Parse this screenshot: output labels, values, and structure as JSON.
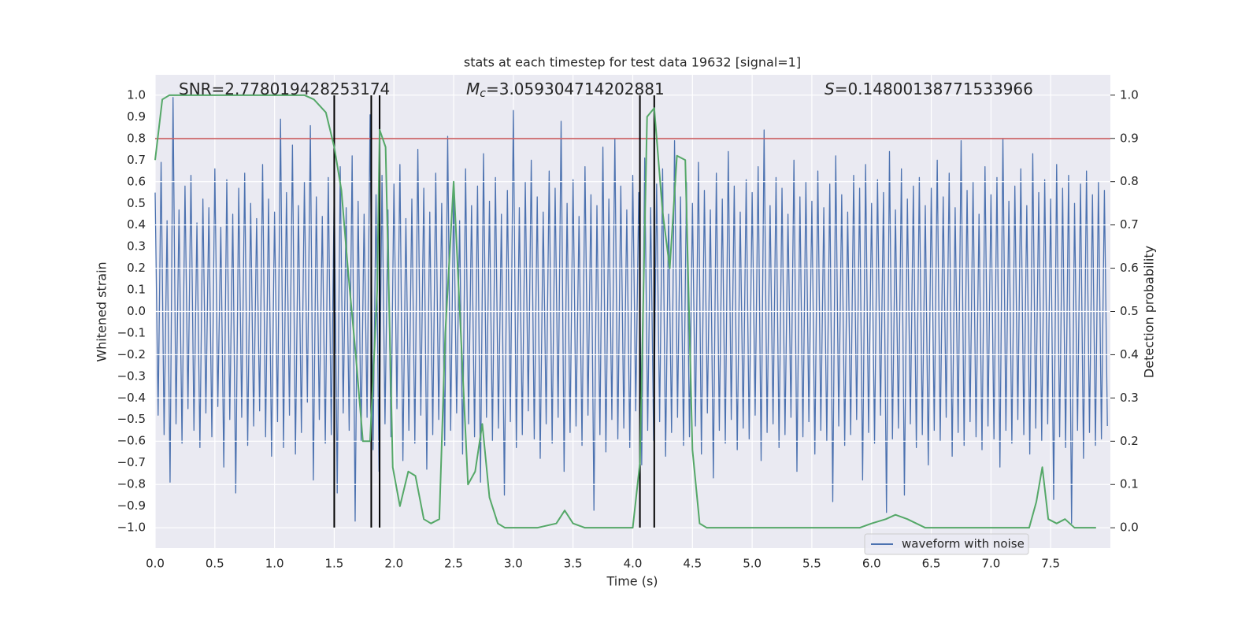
{
  "chart_data": {
    "type": "line",
    "title": "stats at each timestep for test data 19632 [signal=1]",
    "xlabel": "Time (s)",
    "ylabel": "Whitened strain",
    "y2label": "Detection probability",
    "annotations": [
      {
        "parts": [
          "SNR=2.778019428253174"
        ]
      },
      {
        "symbol": "M",
        "subscript": "c",
        "parts": [
          "=3.059304714202881"
        ]
      },
      {
        "symbol": "S",
        "parts": [
          "=0.14800138771533966"
        ]
      }
    ],
    "xlim": [
      0,
      8
    ],
    "ylim": [
      -1.095,
      1.095
    ],
    "y2lim": [
      -0.047,
      1.047
    ],
    "xticks": [
      {
        "value": 0,
        "label": "0.0"
      },
      {
        "value": 0.5,
        "label": "0.5"
      },
      {
        "value": 1,
        "label": "1.0"
      },
      {
        "value": 1.5,
        "label": "1.5"
      },
      {
        "value": 2,
        "label": "2.0"
      },
      {
        "value": 2.5,
        "label": "2.5"
      },
      {
        "value": 3,
        "label": "3.0"
      },
      {
        "value": 3.5,
        "label": "3.5"
      },
      {
        "value": 4,
        "label": "4.0"
      },
      {
        "value": 4.5,
        "label": "4.5"
      },
      {
        "value": 5,
        "label": "5.0"
      },
      {
        "value": 5.5,
        "label": "5.5"
      },
      {
        "value": 6,
        "label": "6.0"
      },
      {
        "value": 6.5,
        "label": "6.5"
      },
      {
        "value": 7,
        "label": "7.0"
      },
      {
        "value": 7.5,
        "label": "7.5"
      }
    ],
    "yticks": [
      {
        "value": -1,
        "label": "−1.0"
      },
      {
        "value": -0.9,
        "label": "−0.9"
      },
      {
        "value": -0.8,
        "label": "−0.8"
      },
      {
        "value": -0.7,
        "label": "−0.7"
      },
      {
        "value": -0.6,
        "label": "−0.6"
      },
      {
        "value": -0.5,
        "label": "−0.5"
      },
      {
        "value": -0.4,
        "label": "−0.4"
      },
      {
        "value": -0.3,
        "label": "−0.3"
      },
      {
        "value": -0.2,
        "label": "−0.2"
      },
      {
        "value": -0.1,
        "label": "−0.1"
      },
      {
        "value": 0,
        "label": "0.0"
      },
      {
        "value": 0.1,
        "label": "0.1"
      },
      {
        "value": 0.2,
        "label": "0.2"
      },
      {
        "value": 0.3,
        "label": "0.3"
      },
      {
        "value": 0.4,
        "label": "0.4"
      },
      {
        "value": 0.5,
        "label": "0.5"
      },
      {
        "value": 0.6,
        "label": "0.6"
      },
      {
        "value": 0.7,
        "label": "0.7"
      },
      {
        "value": 0.8,
        "label": "0.8"
      },
      {
        "value": 0.9,
        "label": "0.9"
      },
      {
        "value": 1,
        "label": "1.0"
      }
    ],
    "y2ticks": [
      {
        "value": 0,
        "label": "0.0"
      },
      {
        "value": 0.1,
        "label": "0.1"
      },
      {
        "value": 0.2,
        "label": "0.2"
      },
      {
        "value": 0.3,
        "label": "0.3"
      },
      {
        "value": 0.4,
        "label": "0.4"
      },
      {
        "value": 0.5,
        "label": "0.5"
      },
      {
        "value": 0.6,
        "label": "0.6"
      },
      {
        "value": 0.7,
        "label": "0.7"
      },
      {
        "value": 0.8,
        "label": "0.8"
      },
      {
        "value": 0.9,
        "label": "0.9"
      },
      {
        "value": 1,
        "label": "1.0"
      }
    ],
    "grid": true,
    "legend": "lower right",
    "hline": {
      "y": 0.8,
      "color": "#c44e52"
    },
    "vlines": {
      "x": [
        1.5,
        1.81,
        1.88,
        4.06,
        4.18
      ],
      "range": [
        -1,
        1
      ],
      "color": "#000000"
    },
    "series": [
      {
        "name": "waveform with noise",
        "color": "#4c72b0",
        "x": [
          0,
          0.025,
          0.05,
          0.075,
          0.1,
          0.125,
          0.15,
          0.175,
          0.2,
          0.225,
          0.25,
          0.275,
          0.3,
          0.325,
          0.35,
          0.375,
          0.4,
          0.425,
          0.45,
          0.475,
          0.5,
          0.525,
          0.55,
          0.575,
          0.6,
          0.625,
          0.65,
          0.675,
          0.7,
          0.725,
          0.75,
          0.775,
          0.8,
          0.825,
          0.85,
          0.875,
          0.9,
          0.925,
          0.95,
          0.975,
          1,
          1.025,
          1.05,
          1.075,
          1.1,
          1.125,
          1.15,
          1.175,
          1.2,
          1.225,
          1.25,
          1.275,
          1.3,
          1.325,
          1.35,
          1.375,
          1.4,
          1.425,
          1.45,
          1.475,
          1.5,
          1.525,
          1.55,
          1.575,
          1.6,
          1.625,
          1.65,
          1.675,
          1.7,
          1.725,
          1.75,
          1.775,
          1.8,
          1.825,
          1.85,
          1.875,
          1.9,
          1.925,
          1.95,
          1.975,
          2,
          2.025,
          2.05,
          2.075,
          2.1,
          2.125,
          2.15,
          2.175,
          2.2,
          2.225,
          2.25,
          2.275,
          2.3,
          2.325,
          2.35,
          2.375,
          2.4,
          2.425,
          2.45,
          2.475,
          2.5,
          2.525,
          2.55,
          2.575,
          2.6,
          2.625,
          2.65,
          2.675,
          2.7,
          2.725,
          2.75,
          2.775,
          2.8,
          2.825,
          2.85,
          2.875,
          2.9,
          2.925,
          2.95,
          2.975,
          3,
          3.025,
          3.05,
          3.075,
          3.1,
          3.125,
          3.15,
          3.175,
          3.2,
          3.225,
          3.25,
          3.275,
          3.3,
          3.325,
          3.35,
          3.375,
          3.4,
          3.425,
          3.45,
          3.475,
          3.5,
          3.525,
          3.55,
          3.575,
          3.6,
          3.625,
          3.65,
          3.675,
          3.7,
          3.725,
          3.75,
          3.775,
          3.8,
          3.825,
          3.85,
          3.875,
          3.9,
          3.925,
          3.95,
          3.975,
          4,
          4.025,
          4.05,
          4.075,
          4.1,
          4.125,
          4.15,
          4.175,
          4.2,
          4.225,
          4.25,
          4.275,
          4.3,
          4.325,
          4.35,
          4.375,
          4.4,
          4.425,
          4.45,
          4.475,
          4.5,
          4.525,
          4.55,
          4.575,
          4.6,
          4.625,
          4.65,
          4.675,
          4.7,
          4.725,
          4.75,
          4.775,
          4.8,
          4.825,
          4.85,
          4.875,
          4.9,
          4.925,
          4.95,
          4.975,
          5,
          5.025,
          5.05,
          5.075,
          5.1,
          5.125,
          5.15,
          5.175,
          5.2,
          5.225,
          5.25,
          5.275,
          5.3,
          5.325,
          5.35,
          5.375,
          5.4,
          5.425,
          5.45,
          5.475,
          5.5,
          5.525,
          5.55,
          5.575,
          5.6,
          5.625,
          5.65,
          5.675,
          5.7,
          5.725,
          5.75,
          5.775,
          5.8,
          5.825,
          5.85,
          5.875,
          5.9,
          5.925,
          5.95,
          5.975,
          6,
          6.025,
          6.05,
          6.075,
          6.1,
          6.125,
          6.15,
          6.175,
          6.2,
          6.225,
          6.25,
          6.275,
          6.3,
          6.325,
          6.35,
          6.375,
          6.4,
          6.425,
          6.45,
          6.475,
          6.5,
          6.525,
          6.55,
          6.575,
          6.6,
          6.625,
          6.65,
          6.675,
          6.7,
          6.725,
          6.75,
          6.775,
          6.8,
          6.825,
          6.85,
          6.875,
          6.9,
          6.925,
          6.95,
          6.975,
          7,
          7.025,
          7.05,
          7.075,
          7.1,
          7.125,
          7.15,
          7.175,
          7.2,
          7.225,
          7.25,
          7.275,
          7.3,
          7.325,
          7.35,
          7.375,
          7.4,
          7.425,
          7.45,
          7.475,
          7.5,
          7.525,
          7.55,
          7.575,
          7.6,
          7.625,
          7.65,
          7.675,
          7.7,
          7.725,
          7.75,
          7.775,
          7.8,
          7.825,
          7.85,
          7.875,
          7.9,
          7.925,
          7.95,
          7.975
        ],
        "values": [
          0.55,
          -0.48,
          0.69,
          -0.57,
          0.42,
          -0.79,
          0.99,
          -0.52,
          0.47,
          -0.61,
          0.58,
          -0.45,
          0.63,
          -0.55,
          0.41,
          -0.63,
          0.52,
          -0.47,
          0.48,
          -0.58,
          0.66,
          -0.44,
          0.39,
          -0.72,
          0.61,
          -0.5,
          0.45,
          -0.84,
          0.57,
          -0.49,
          0.64,
          -0.62,
          0.5,
          -0.53,
          0.43,
          -0.46,
          0.68,
          -0.58,
          0.52,
          -0.67,
          0.46,
          -0.51,
          0.89,
          -0.63,
          0.55,
          -0.48,
          0.77,
          -0.66,
          0.49,
          -0.56,
          0.6,
          -0.42,
          0.86,
          -0.78,
          0.53,
          -0.5,
          0.44,
          -0.61,
          0.62,
          -0.57,
          0.58,
          -0.84,
          0.67,
          -0.47,
          0.48,
          -0.55,
          0.72,
          -0.97,
          0.51,
          -0.6,
          0.45,
          -0.49,
          0.91,
          -0.64,
          0.54,
          -0.74,
          0.63,
          -0.52,
          0.47,
          -0.58,
          0.59,
          -0.45,
          0.68,
          -0.69,
          0.43,
          -0.55,
          0.52,
          -0.61,
          0.75,
          -0.48,
          0.57,
          -0.73,
          0.46,
          -0.57,
          0.64,
          -0.5,
          0.5,
          -0.62,
          0.81,
          -0.55,
          0.55,
          -0.47,
          0.42,
          -0.66,
          0.66,
          -0.52,
          0.49,
          -0.58,
          0.58,
          -0.79,
          0.73,
          -0.49,
          0.51,
          -0.6,
          0.62,
          -0.54,
          0.45,
          -0.85,
          0.56,
          -0.51,
          0.93,
          -0.63,
          0.48,
          -0.57,
          0.6,
          -0.46,
          0.7,
          -0.59,
          0.53,
          -0.68,
          0.46,
          -0.52,
          0.65,
          -0.61,
          0.57,
          -0.49,
          0.88,
          -0.74,
          0.5,
          -0.56,
          0.61,
          -0.53,
          0.44,
          -0.62,
          0.67,
          -0.48,
          0.54,
          -0.92,
          0.49,
          -0.57,
          0.76,
          -0.65,
          0.52,
          -0.5,
          0.8,
          -0.59,
          0.58,
          -0.54,
          0.47,
          -0.63,
          0.63,
          -0.46,
          0.55,
          -0.71,
          0.71,
          -0.55,
          0.48,
          -0.6,
          0.59,
          -0.51,
          0.66,
          -0.67,
          0.45,
          -0.56,
          0.79,
          -0.49,
          0.53,
          -0.62,
          0.6,
          -0.58,
          0.5,
          -0.53,
          0.69,
          -0.66,
          0.56,
          -0.47,
          0.47,
          -0.77,
          0.64,
          -0.55,
          0.52,
          -0.61,
          0.74,
          -0.5,
          0.58,
          -0.64,
          0.46,
          -0.54,
          0.61,
          -0.59,
          0.55,
          -0.48,
          0.67,
          -0.69,
          0.84,
          -0.56,
          0.49,
          -0.52,
          0.62,
          -0.63,
          0.57,
          -0.57,
          0.45,
          -0.49,
          0.7,
          -0.74,
          0.53,
          -0.58,
          0.6,
          -0.51,
          0.51,
          -0.66,
          0.65,
          -0.55,
          0.48,
          -0.6,
          0.59,
          -0.88,
          0.72,
          -0.53,
          0.54,
          -0.62,
          0.46,
          -0.57,
          0.63,
          -0.5,
          0.57,
          -0.78,
          0.68,
          -0.56,
          0.5,
          -0.61,
          0.61,
          -0.48,
          0.55,
          -0.93,
          0.74,
          -0.59,
          0.47,
          -0.54,
          0.66,
          -0.85,
          0.52,
          -0.52,
          0.58,
          -0.63,
          0.62,
          -0.57,
          0.49,
          -0.71,
          0.57,
          -0.55,
          0.7,
          -0.6,
          0.53,
          -0.49,
          0.64,
          -0.67,
          0.48,
          -0.56,
          0.79,
          -0.62,
          0.56,
          -0.51,
          0.6,
          -0.58,
          0.45,
          -0.64,
          0.67,
          -0.53,
          0.54,
          -0.59,
          0.62,
          -0.72,
          0.8,
          -0.55,
          0.51,
          -0.61,
          0.58,
          -0.5,
          0.66,
          -0.57,
          0.49,
          -0.66,
          0.73,
          -0.54,
          0.55,
          -0.6,
          0.61,
          -0.52,
          0.52,
          -0.87,
          0.68,
          -0.58,
          0.57,
          -0.63,
          0.63,
          -0.98,
          0.5,
          -0.55,
          0.59,
          -0.68,
          0.65,
          -0.56,
          0.54,
          -0.62,
          0.6,
          -0.59,
          0.56,
          -0.53
        ]
      },
      {
        "color": "#55a868",
        "axis": "y2",
        "x": [
          0,
          0.06,
          0.12,
          0.5,
          1,
          1.25,
          1.33,
          1.43,
          1.5,
          1.56,
          1.62,
          1.68,
          1.74,
          1.8,
          1.86,
          1.88,
          1.93,
          1.99,
          2.05,
          2.12,
          2.18,
          2.25,
          2.31,
          2.38,
          2.43,
          2.5,
          2.56,
          2.62,
          2.68,
          2.74,
          2.8,
          2.87,
          2.93,
          3,
          3.2,
          3.36,
          3.43,
          3.5,
          3.6,
          3.8,
          4,
          4.06,
          4.12,
          4.18,
          4.25,
          4.31,
          4.37,
          4.44,
          4.5,
          4.56,
          4.62,
          4.8,
          5,
          5.5,
          5.9,
          6,
          6.12,
          6.2,
          6.3,
          6.45,
          7,
          7.25,
          7.32,
          7.38,
          7.43,
          7.48,
          7.55,
          7.62,
          7.7,
          7.8,
          7.88
        ],
        "values": [
          0.85,
          0.99,
          1,
          1,
          1,
          1,
          0.99,
          0.96,
          0.88,
          0.78,
          0.58,
          0.4,
          0.2,
          0.2,
          0.55,
          0.92,
          0.88,
          0.14,
          0.05,
          0.13,
          0.12,
          0.02,
          0.01,
          0.02,
          0.45,
          0.8,
          0.45,
          0.1,
          0.13,
          0.24,
          0.07,
          0.01,
          0,
          0,
          0,
          0.01,
          0.04,
          0.01,
          0,
          0,
          0,
          0.15,
          0.95,
          0.97,
          0.73,
          0.6,
          0.86,
          0.85,
          0.18,
          0.01,
          0,
          0,
          0,
          0,
          0,
          0.01,
          0.02,
          0.03,
          0.02,
          0,
          0,
          0,
          0,
          0.06,
          0.14,
          0.02,
          0.01,
          0.02,
          0,
          0,
          0
        ]
      }
    ]
  }
}
